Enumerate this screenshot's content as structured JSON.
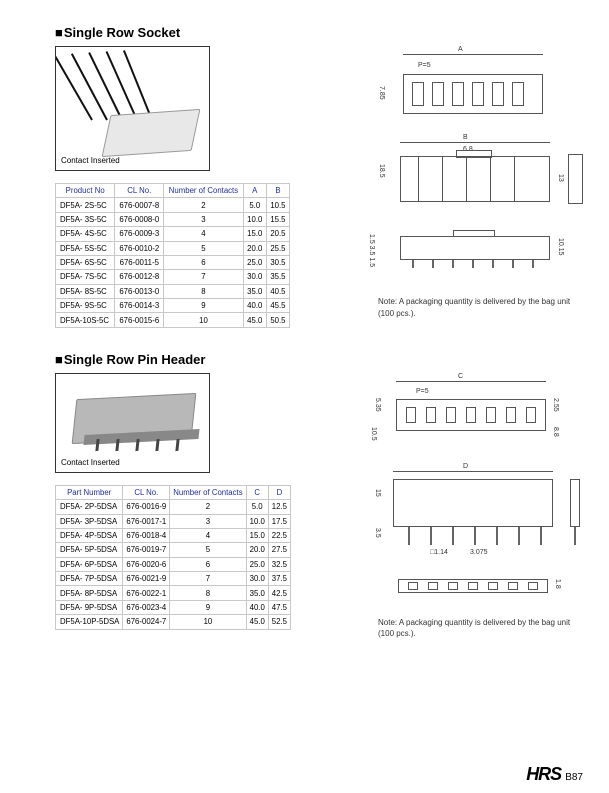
{
  "section1": {
    "title": "Single Row Socket",
    "caption": "Contact Inserted",
    "note": "Note: A packaging quantity is delivered by the bag unit (100 pcs.).",
    "header": [
      "Product No",
      "CL No.",
      "Number of Contacts",
      "A",
      "B"
    ],
    "rows": [
      [
        "DF5A- 2S-5C",
        "676-0007-8",
        "2",
        "5.0",
        "10.5"
      ],
      [
        "DF5A- 3S-5C",
        "676-0008-0",
        "3",
        "10.0",
        "15.5"
      ],
      [
        "DF5A- 4S-5C",
        "676-0009-3",
        "4",
        "15.0",
        "20.5"
      ],
      [
        "DF5A- 5S-5C",
        "676-0010-2",
        "5",
        "20.0",
        "25.5"
      ],
      [
        "DF5A- 6S-5C",
        "676-0011-5",
        "6",
        "25.0",
        "30.5"
      ],
      [
        "DF5A- 7S-5C",
        "676-0012-8",
        "7",
        "30.0",
        "35.5"
      ],
      [
        "DF5A- 8S-5C",
        "676-0013-0",
        "8",
        "35.0",
        "40.5"
      ],
      [
        "DF5A- 9S-5C",
        "676-0014-3",
        "9",
        "40.0",
        "45.5"
      ],
      [
        "DF5A-10S-5C",
        "676-0015-6",
        "10",
        "45.0",
        "50.5"
      ]
    ],
    "dims": {
      "a": "A",
      "b": "B",
      "t785": "7.85",
      "t68": "6.8",
      "t185": "18.5",
      "t13": "13",
      "p5": "P=5",
      "t1535": "1.5 3.5 1.5",
      "t1015": "10.15"
    }
  },
  "section2": {
    "title": "Single Row Pin Header",
    "caption": "Contact Inserted",
    "note": "Note: A packaging quantity is delivered by the bag unit (100 pcs.).",
    "header": [
      "Part Number",
      "CL No.",
      "Number of Contacts",
      "C",
      "D"
    ],
    "rows": [
      [
        "DF5A- 2P-5DSA",
        "676-0016-9",
        "2",
        "5.0",
        "12.5"
      ],
      [
        "DF5A- 3P-5DSA",
        "676-0017-1",
        "3",
        "10.0",
        "17.5"
      ],
      [
        "DF5A- 4P-5DSA",
        "676-0018-4",
        "4",
        "15.0",
        "22.5"
      ],
      [
        "DF5A- 5P-5DSA",
        "676-0019-7",
        "5",
        "20.0",
        "27.5"
      ],
      [
        "DF5A- 6P-5DSA",
        "676-0020-6",
        "6",
        "25.0",
        "32.5"
      ],
      [
        "DF5A- 7P-5DSA",
        "676-0021-9",
        "7",
        "30.0",
        "37.5"
      ],
      [
        "DF5A- 8P-5DSA",
        "676-0022-1",
        "8",
        "35.0",
        "42.5"
      ],
      [
        "DF5A- 9P-5DSA",
        "676-0023-4",
        "9",
        "40.0",
        "47.5"
      ],
      [
        "DF5A-10P-5DSA",
        "676-0024-7",
        "10",
        "45.0",
        "52.5"
      ]
    ],
    "dims": {
      "c": "C",
      "d": "D",
      "p5": "P=5",
      "t535": "5.35",
      "t255": "2.55",
      "t105": "10.5",
      "t88": "8.8",
      "t15": "15",
      "t35": "3.5",
      "t114": "□1.14",
      "t3075": "3.075",
      "t18": "1.8"
    }
  },
  "footer": {
    "logo": "HRS",
    "page": "B87"
  },
  "colors": {
    "header_text": "#2030a0",
    "border": "#c8c8c8",
    "line": "#555555",
    "photo_bg": "#e8e8e8"
  }
}
